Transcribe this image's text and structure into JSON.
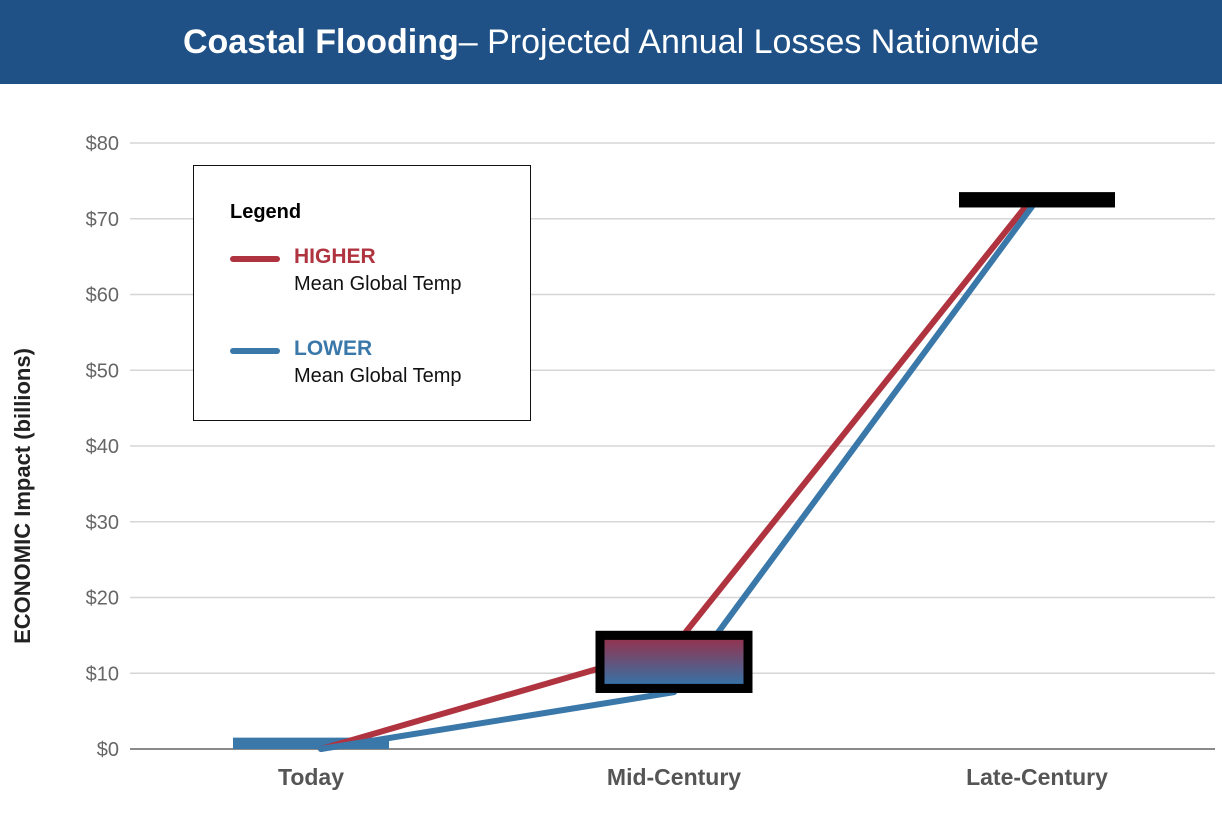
{
  "header": {
    "title_bold": "Coastal Flooding",
    "title_rest": " – Projected Annual Losses Nationwide",
    "background_color": "#1f5186"
  },
  "legend": {
    "title": "Legend",
    "items": [
      {
        "name": "HIGHER",
        "description": "Mean Global Temp",
        "color": "#b03340"
      },
      {
        "name": "LOWER",
        "description": "Mean Global Temp",
        "color": "#3a78aa"
      }
    ]
  },
  "chart_data": {
    "type": "line",
    "title": "Coastal Flooding – Projected Annual Losses Nationwide",
    "ylabel": "ECONOMIC Impact (billions)",
    "xlabel": "",
    "categories": [
      "Today",
      "Mid-Century",
      "Late-Century"
    ],
    "y_ticks": [
      "$0",
      "$10",
      "$20",
      "$30",
      "$40",
      "$50",
      "$60",
      "$70",
      "$80"
    ],
    "ylim": [
      0,
      80
    ],
    "grid": true,
    "legend_position": "top-left",
    "series": [
      {
        "name": "HIGHER",
        "color": "#b03340",
        "values": [
          0,
          13.5,
          72.5
        ]
      },
      {
        "name": "LOWER",
        "color": "#3a78aa",
        "values": [
          0,
          7.5,
          72.5
        ]
      }
    ],
    "ranges": [
      {
        "category": "Today",
        "low": 0,
        "high": 1.5,
        "style": "bar",
        "color": "#3a78aa"
      },
      {
        "category": "Mid-Century",
        "low": 8,
        "high": 15,
        "style": "gradient-box",
        "top_color": "#9a2e48",
        "bottom_color": "#2f77ad"
      },
      {
        "category": "Late-Century",
        "low": 71.5,
        "high": 73.5,
        "style": "bar",
        "color": "#000000"
      }
    ]
  }
}
